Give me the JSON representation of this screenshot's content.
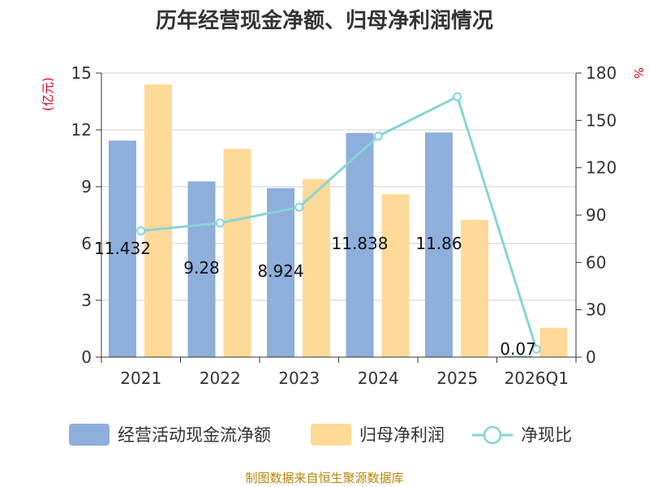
{
  "colors": {
    "bar_cash": "#8eaedb",
    "bar_profit": "#fed997",
    "line": "#86d4d8",
    "grid": "#cccccc",
    "axis": "#333333",
    "unit": "#e0001b",
    "source": "#b8860b"
  },
  "chart_data": {
    "type": "bar",
    "title": "历年经营现金净额、归母净利润情况",
    "categories": [
      "2021",
      "2022",
      "2023",
      "2024",
      "2025",
      "2026Q1"
    ],
    "left_axis": {
      "unit": "(亿元)",
      "ylim": [
        0,
        15
      ],
      "ticks": [
        0,
        3,
        6,
        9,
        12,
        15
      ]
    },
    "right_axis": {
      "unit": "%",
      "ylim": [
        0,
        180
      ],
      "ticks": [
        0,
        30,
        60,
        90,
        120,
        150,
        180
      ]
    },
    "series": [
      {
        "name": "经营活动现金流净额",
        "kind": "bar",
        "axis": "left",
        "values": [
          11.432,
          9.28,
          8.924,
          11.838,
          11.86,
          0.07
        ],
        "labels": [
          "11.432",
          "9.28",
          "8.924",
          "11.838",
          "11.86",
          "0.07"
        ]
      },
      {
        "name": "归母净利润",
        "kind": "bar",
        "axis": "left",
        "values": [
          14.4,
          11.0,
          9.4,
          8.6,
          7.25,
          1.55
        ]
      },
      {
        "name": "净现比",
        "kind": "line",
        "axis": "right",
        "values": [
          80,
          85,
          95,
          140,
          165,
          5
        ]
      }
    ],
    "legend": [
      "经营活动现金流净额",
      "归母净利润",
      "净现比"
    ],
    "source": "制图数据来自恒生聚源数据库"
  }
}
